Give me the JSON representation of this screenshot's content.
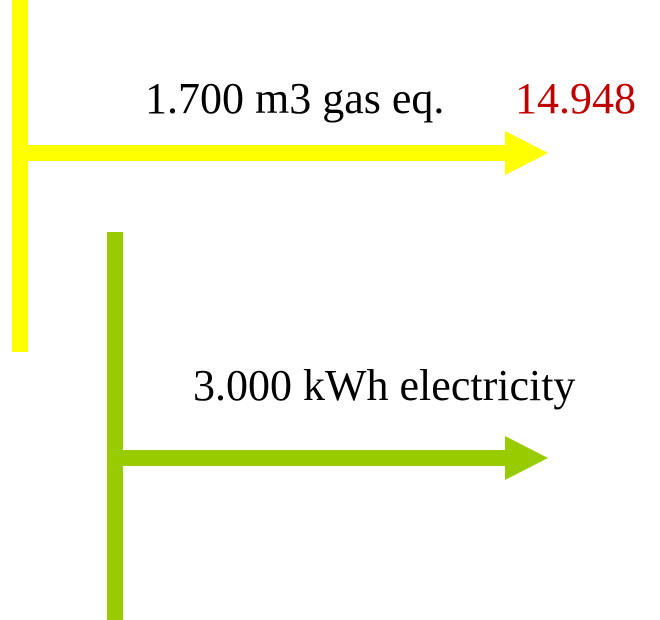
{
  "flows": [
    {
      "label": "1.700 m3 gas eq.",
      "value_label": "14.948"
    },
    {
      "label": "3.000 kWh electricity"
    }
  ]
}
